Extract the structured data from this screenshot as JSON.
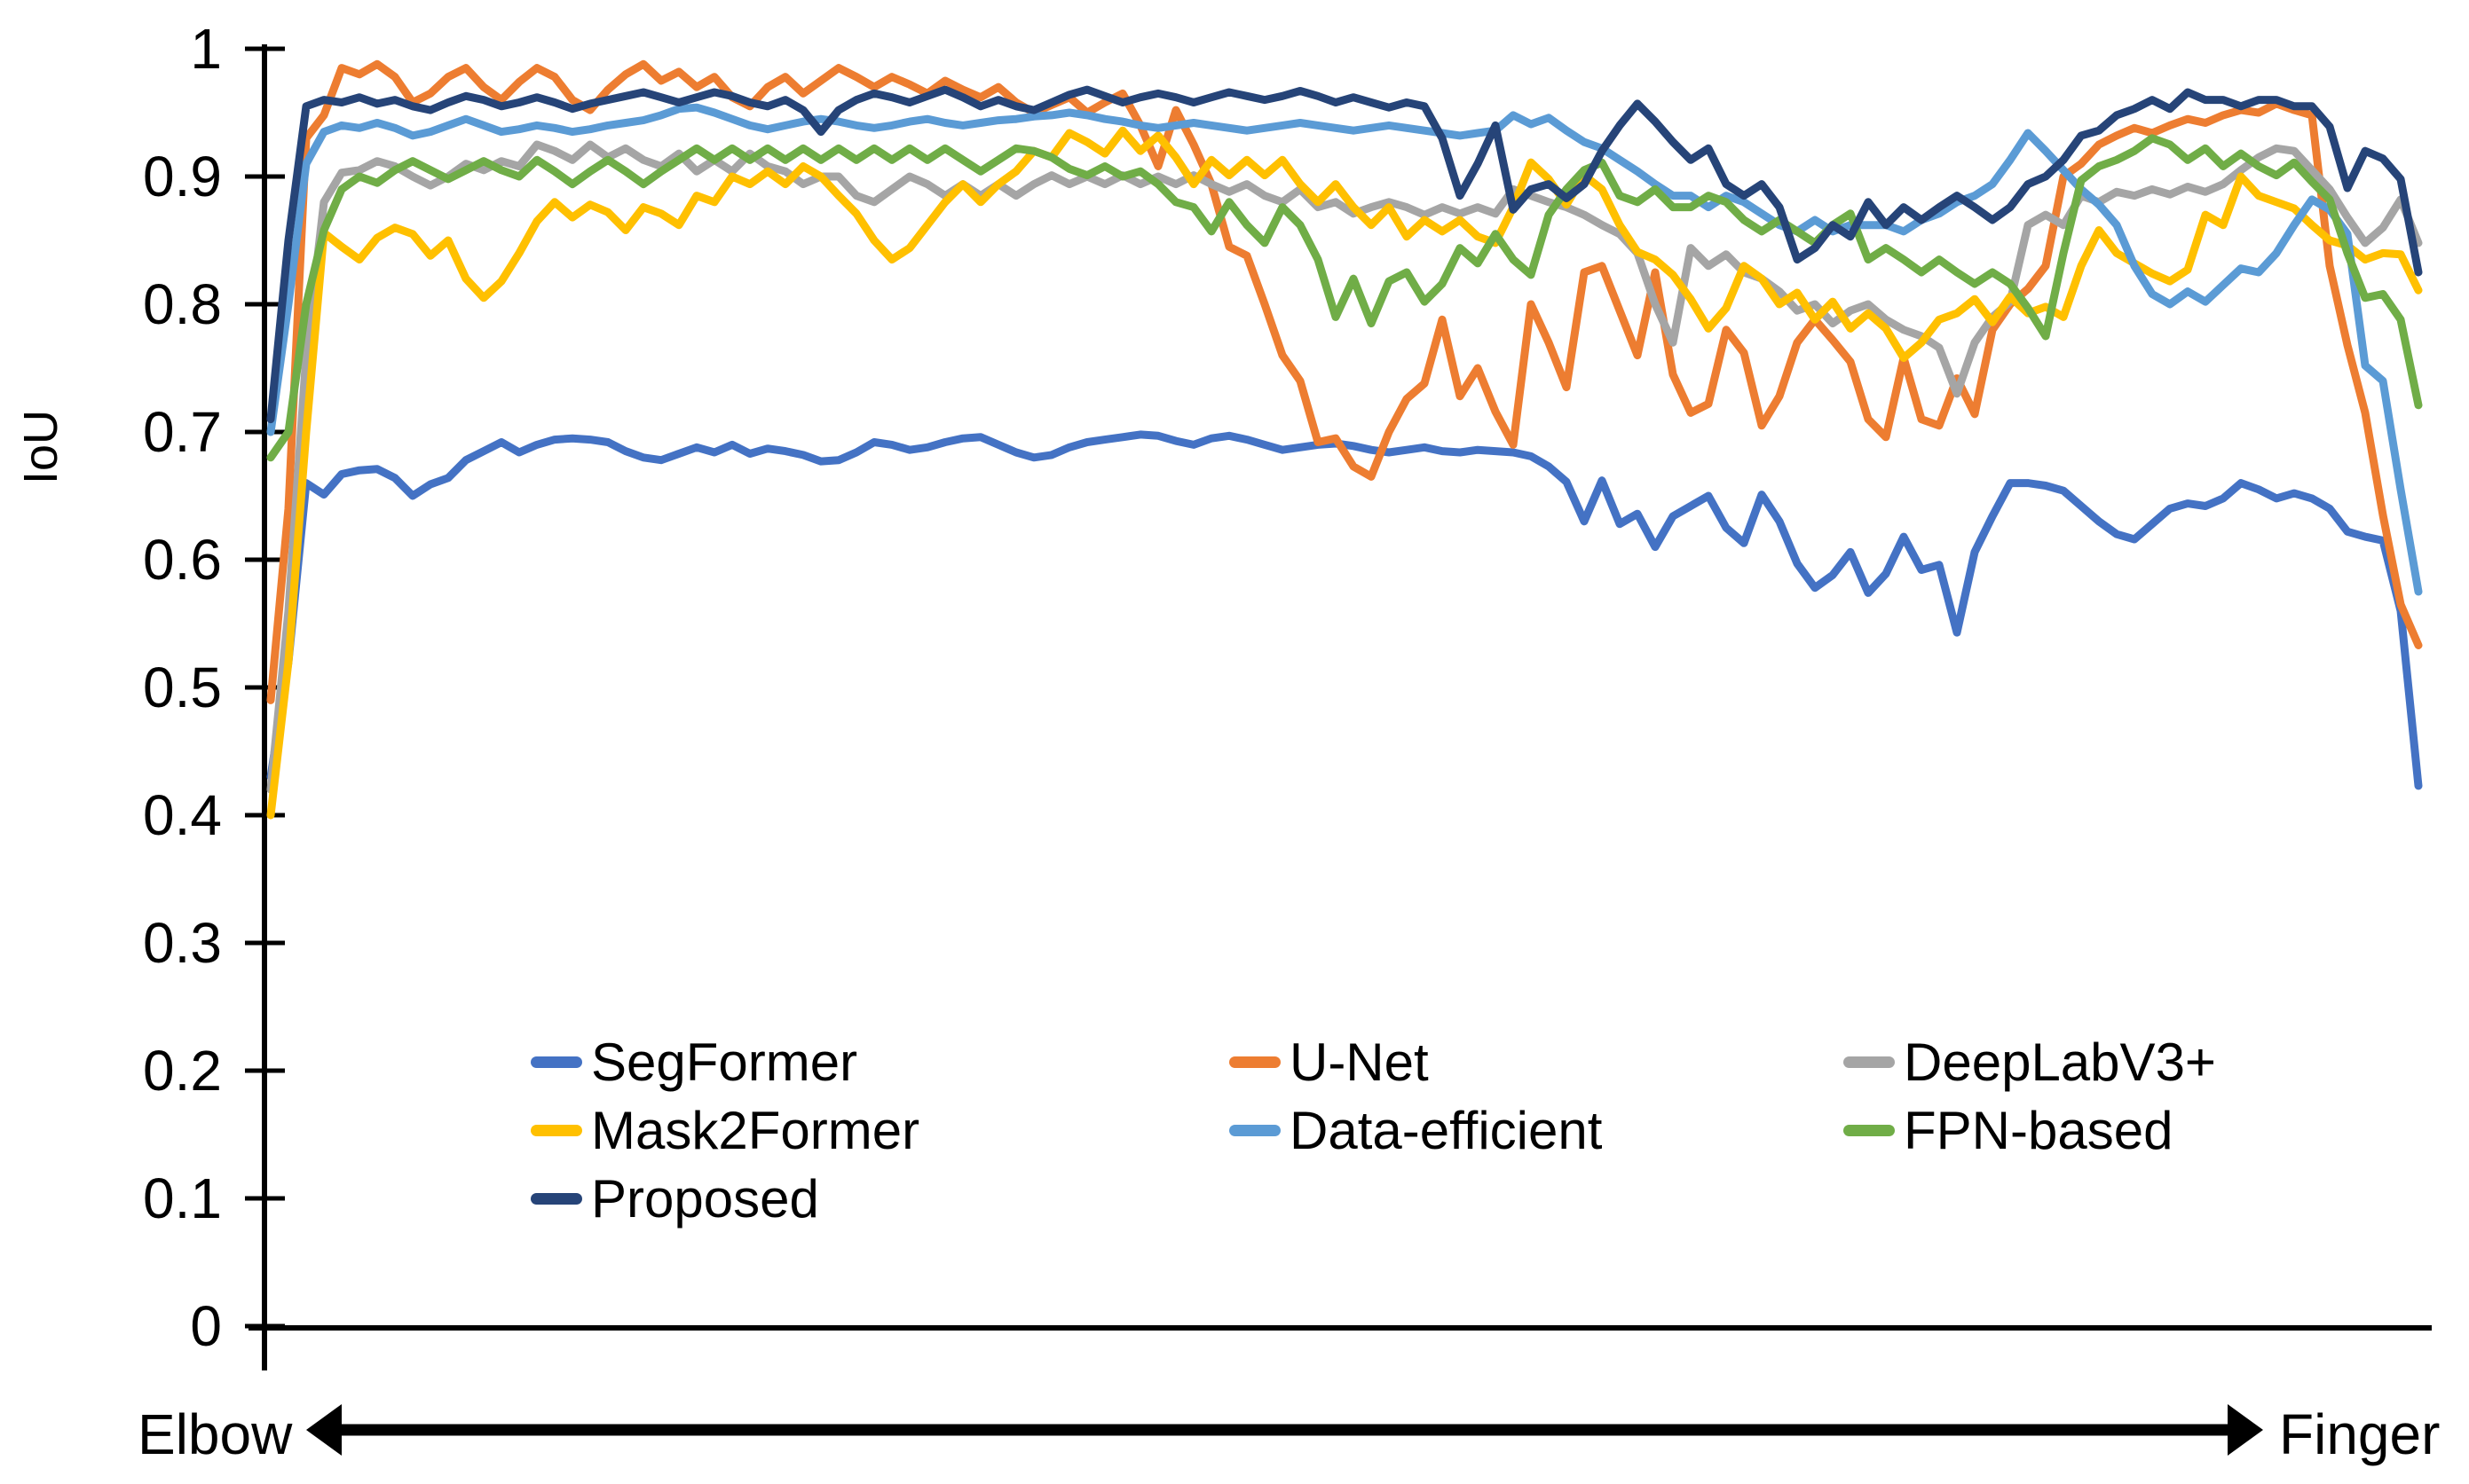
{
  "figure": {
    "ylabel": "IoU",
    "x_left_label": "Elbow",
    "x_right_label": "Finger"
  },
  "legend": {
    "items": [
      {
        "label": "SegFormer",
        "color": "#4472C4"
      },
      {
        "label": "U-Net",
        "color": "#ED7D31"
      },
      {
        "label": "DeepLabV3+",
        "color": "#A5A5A5"
      },
      {
        "label": "Mask2Former",
        "color": "#FFC000"
      },
      {
        "label": "Data-efficient",
        "color": "#5B9BD5"
      },
      {
        "label": "FPN-based",
        "color": "#70AD47"
      },
      {
        "label": "Proposed",
        "color": "#264478"
      }
    ]
  },
  "chart_data": {
    "type": "line",
    "title": "",
    "ylabel": "IoU",
    "x_axis": {
      "left_label": "Elbow",
      "right_label": "Finger",
      "style": "double-headed arrow, no numeric ticks"
    },
    "ylim": [
      0,
      1
    ],
    "y_ticks": [
      "0",
      "0.1",
      "0.2",
      "0.3",
      "0.4",
      "0.5",
      "0.6",
      "0.7",
      "0.8",
      "0.9",
      "1"
    ],
    "grid": false,
    "legend_position": "inside lower center, 3 columns",
    "series": [
      {
        "name": "SegFormer",
        "color": "#4472C4",
        "values": [
          0.43,
          0.52,
          0.66,
          0.651,
          0.667,
          0.67,
          0.671,
          0.664,
          0.65,
          0.659,
          0.664,
          0.678,
          0.685,
          0.692,
          0.684,
          0.69,
          0.694,
          0.695,
          0.694,
          0.692,
          0.685,
          0.68,
          0.678,
          0.683,
          0.688,
          0.684,
          0.69,
          0.683,
          0.687,
          0.685,
          0.682,
          0.677,
          0.678,
          0.684,
          0.692,
          0.69,
          0.686,
          0.688,
          0.692,
          0.695,
          0.696,
          0.69,
          0.684,
          0.68,
          0.682,
          0.688,
          0.692,
          0.694,
          0.696,
          0.698,
          0.697,
          0.693,
          0.69,
          0.695,
          0.697,
          0.694,
          0.69,
          0.686,
          0.688,
          0.69,
          0.691,
          0.689,
          0.686,
          0.684,
          0.686,
          0.688,
          0.685,
          0.684,
          0.686,
          0.685,
          0.684,
          0.681,
          0.673,
          0.661,
          0.63,
          0.662,
          0.628,
          0.636,
          0.61,
          0.634,
          0.642,
          0.65,
          0.625,
          0.613,
          0.651,
          0.63,
          0.597,
          0.578,
          0.588,
          0.606,
          0.574,
          0.589,
          0.618,
          0.592,
          0.596,
          0.543,
          0.606,
          0.634,
          0.66,
          0.66,
          0.658,
          0.654,
          0.642,
          0.63,
          0.62,
          0.616,
          0.628,
          0.64,
          0.644,
          0.642,
          0.648,
          0.66,
          0.655,
          0.648,
          0.652,
          0.648,
          0.64,
          0.622,
          0.618,
          0.615,
          0.56,
          0.423
        ]
      },
      {
        "name": "U-Net",
        "color": "#ED7D31",
        "values": [
          0.49,
          0.64,
          0.93,
          0.948,
          0.985,
          0.98,
          0.988,
          0.978,
          0.958,
          0.965,
          0.978,
          0.985,
          0.97,
          0.96,
          0.974,
          0.985,
          0.978,
          0.96,
          0.952,
          0.968,
          0.98,
          0.988,
          0.975,
          0.982,
          0.97,
          0.978,
          0.962,
          0.955,
          0.97,
          0.978,
          0.965,
          0.975,
          0.985,
          0.978,
          0.97,
          0.978,
          0.972,
          0.965,
          0.975,
          0.968,
          0.962,
          0.97,
          0.958,
          0.95,
          0.956,
          0.962,
          0.95,
          0.958,
          0.965,
          0.94,
          0.908,
          0.952,
          0.925,
          0.894,
          0.845,
          0.838,
          0.8,
          0.76,
          0.74,
          0.692,
          0.695,
          0.673,
          0.665,
          0.7,
          0.726,
          0.738,
          0.788,
          0.728,
          0.75,
          0.716,
          0.69,
          0.8,
          0.77,
          0.735,
          0.825,
          0.83,
          0.795,
          0.76,
          0.825,
          0.745,
          0.715,
          0.722,
          0.78,
          0.762,
          0.705,
          0.728,
          0.77,
          0.788,
          0.772,
          0.755,
          0.71,
          0.696,
          0.758,
          0.71,
          0.705,
          0.742,
          0.714,
          0.78,
          0.8,
          0.812,
          0.83,
          0.9,
          0.91,
          0.925,
          0.932,
          0.938,
          0.934,
          0.94,
          0.945,
          0.942,
          0.948,
          0.952,
          0.95,
          0.957,
          0.952,
          0.948,
          0.83,
          0.768,
          0.715,
          0.635,
          0.565,
          0.533
        ]
      },
      {
        "name": "DeepLabV3+",
        "color": "#A5A5A5",
        "values": [
          0.42,
          0.56,
          0.76,
          0.88,
          0.903,
          0.905,
          0.912,
          0.908,
          0.9,
          0.893,
          0.9,
          0.91,
          0.905,
          0.912,
          0.908,
          0.925,
          0.92,
          0.913,
          0.925,
          0.915,
          0.922,
          0.913,
          0.908,
          0.918,
          0.904,
          0.913,
          0.904,
          0.918,
          0.908,
          0.904,
          0.894,
          0.9,
          0.9,
          0.885,
          0.88,
          0.89,
          0.9,
          0.894,
          0.885,
          0.894,
          0.885,
          0.894,
          0.885,
          0.894,
          0.901,
          0.894,
          0.9,
          0.894,
          0.901,
          0.894,
          0.9,
          0.894,
          0.901,
          0.894,
          0.888,
          0.894,
          0.885,
          0.88,
          0.89,
          0.876,
          0.88,
          0.871,
          0.876,
          0.88,
          0.876,
          0.87,
          0.876,
          0.871,
          0.876,
          0.871,
          0.89,
          0.885,
          0.88,
          0.876,
          0.87,
          0.862,
          0.855,
          0.84,
          0.8,
          0.77,
          0.844,
          0.83,
          0.839,
          0.825,
          0.82,
          0.81,
          0.795,
          0.8,
          0.785,
          0.795,
          0.8,
          0.788,
          0.78,
          0.775,
          0.766,
          0.73,
          0.77,
          0.79,
          0.802,
          0.862,
          0.87,
          0.862,
          0.885,
          0.88,
          0.888,
          0.885,
          0.89,
          0.886,
          0.892,
          0.888,
          0.894,
          0.905,
          0.915,
          0.922,
          0.92,
          0.905,
          0.89,
          0.868,
          0.848,
          0.86,
          0.882,
          0.848
        ]
      },
      {
        "name": "Mask2Former",
        "color": "#FFC000",
        "values": [
          0.4,
          0.52,
          0.7,
          0.856,
          0.845,
          0.835,
          0.852,
          0.86,
          0.855,
          0.838,
          0.85,
          0.82,
          0.805,
          0.818,
          0.84,
          0.865,
          0.88,
          0.868,
          0.878,
          0.872,
          0.858,
          0.876,
          0.871,
          0.862,
          0.885,
          0.88,
          0.9,
          0.894,
          0.904,
          0.894,
          0.908,
          0.9,
          0.885,
          0.871,
          0.85,
          0.835,
          0.844,
          0.862,
          0.88,
          0.894,
          0.88,
          0.894,
          0.904,
          0.92,
          0.915,
          0.934,
          0.927,
          0.918,
          0.936,
          0.92,
          0.932,
          0.915,
          0.894,
          0.913,
          0.901,
          0.913,
          0.901,
          0.913,
          0.894,
          0.88,
          0.894,
          0.876,
          0.862,
          0.876,
          0.853,
          0.866,
          0.857,
          0.866,
          0.853,
          0.848,
          0.876,
          0.911,
          0.898,
          0.878,
          0.901,
          0.89,
          0.862,
          0.841,
          0.835,
          0.823,
          0.804,
          0.781,
          0.797,
          0.83,
          0.82,
          0.8,
          0.809,
          0.788,
          0.802,
          0.781,
          0.793,
          0.781,
          0.758,
          0.77,
          0.788,
          0.793,
          0.804,
          0.786,
          0.806,
          0.793,
          0.798,
          0.79,
          0.83,
          0.858,
          0.84,
          0.832,
          0.824,
          0.818,
          0.827,
          0.87,
          0.862,
          0.9,
          0.885,
          0.88,
          0.875,
          0.862,
          0.85,
          0.846,
          0.835,
          0.84,
          0.839,
          0.811
        ]
      },
      {
        "name": "Data-efficient",
        "color": "#5B9BD5",
        "values": [
          0.7,
          0.8,
          0.91,
          0.935,
          0.94,
          0.938,
          0.942,
          0.938,
          0.932,
          0.935,
          0.94,
          0.945,
          0.94,
          0.935,
          0.937,
          0.94,
          0.938,
          0.935,
          0.937,
          0.94,
          0.942,
          0.944,
          0.948,
          0.953,
          0.954,
          0.95,
          0.945,
          0.94,
          0.937,
          0.94,
          0.943,
          0.945,
          0.943,
          0.94,
          0.938,
          0.94,
          0.943,
          0.945,
          0.942,
          0.94,
          0.942,
          0.944,
          0.945,
          0.947,
          0.948,
          0.95,
          0.948,
          0.945,
          0.943,
          0.94,
          0.938,
          0.94,
          0.942,
          0.94,
          0.938,
          0.936,
          0.938,
          0.94,
          0.942,
          0.94,
          0.938,
          0.936,
          0.938,
          0.94,
          0.938,
          0.936,
          0.934,
          0.932,
          0.934,
          0.936,
          0.948,
          0.941,
          0.946,
          0.936,
          0.927,
          0.922,
          0.913,
          0.904,
          0.894,
          0.885,
          0.885,
          0.876,
          0.885,
          0.88,
          0.871,
          0.862,
          0.857,
          0.866,
          0.857,
          0.862,
          0.862,
          0.862,
          0.857,
          0.866,
          0.871,
          0.88,
          0.885,
          0.894,
          0.913,
          0.934,
          0.92,
          0.905,
          0.89,
          0.878,
          0.862,
          0.83,
          0.808,
          0.8,
          0.81,
          0.802,
          0.815,
          0.828,
          0.825,
          0.84,
          0.862,
          0.882,
          0.874,
          0.855,
          0.752,
          0.74,
          0.655,
          0.575
        ]
      },
      {
        "name": "FPN-based",
        "color": "#70AD47",
        "values": [
          0.68,
          0.7,
          0.8,
          0.858,
          0.89,
          0.9,
          0.895,
          0.905,
          0.912,
          0.905,
          0.898,
          0.905,
          0.912,
          0.905,
          0.9,
          0.913,
          0.904,
          0.894,
          0.904,
          0.913,
          0.904,
          0.894,
          0.904,
          0.913,
          0.922,
          0.913,
          0.922,
          0.913,
          0.922,
          0.913,
          0.922,
          0.913,
          0.922,
          0.913,
          0.922,
          0.913,
          0.922,
          0.913,
          0.922,
          0.913,
          0.904,
          0.913,
          0.922,
          0.92,
          0.915,
          0.906,
          0.901,
          0.908,
          0.9,
          0.904,
          0.894,
          0.88,
          0.876,
          0.857,
          0.88,
          0.862,
          0.848,
          0.876,
          0.862,
          0.835,
          0.79,
          0.82,
          0.785,
          0.818,
          0.825,
          0.802,
          0.816,
          0.844,
          0.832,
          0.855,
          0.835,
          0.823,
          0.87,
          0.89,
          0.905,
          0.911,
          0.885,
          0.88,
          0.89,
          0.876,
          0.876,
          0.885,
          0.88,
          0.866,
          0.857,
          0.866,
          0.857,
          0.848,
          0.862,
          0.871,
          0.835,
          0.844,
          0.835,
          0.825,
          0.835,
          0.825,
          0.816,
          0.825,
          0.816,
          0.797,
          0.775,
          0.84,
          0.897,
          0.908,
          0.913,
          0.92,
          0.93,
          0.925,
          0.913,
          0.922,
          0.908,
          0.918,
          0.908,
          0.901,
          0.911,
          0.896,
          0.882,
          0.84,
          0.805,
          0.808,
          0.788,
          0.721
        ]
      },
      {
        "name": "Proposed",
        "color": "#264478",
        "values": [
          0.71,
          0.85,
          0.955,
          0.96,
          0.958,
          0.962,
          0.957,
          0.96,
          0.955,
          0.952,
          0.958,
          0.963,
          0.96,
          0.955,
          0.958,
          0.962,
          0.958,
          0.953,
          0.957,
          0.96,
          0.963,
          0.966,
          0.962,
          0.958,
          0.962,
          0.966,
          0.963,
          0.958,
          0.955,
          0.96,
          0.952,
          0.935,
          0.952,
          0.96,
          0.965,
          0.962,
          0.958,
          0.963,
          0.968,
          0.962,
          0.955,
          0.96,
          0.955,
          0.952,
          0.958,
          0.964,
          0.968,
          0.963,
          0.958,
          0.962,
          0.965,
          0.962,
          0.958,
          0.962,
          0.966,
          0.963,
          0.96,
          0.963,
          0.967,
          0.963,
          0.958,
          0.962,
          0.958,
          0.954,
          0.958,
          0.955,
          0.93,
          0.885,
          0.91,
          0.94,
          0.874,
          0.89,
          0.894,
          0.883,
          0.894,
          0.92,
          0.94,
          0.957,
          0.943,
          0.927,
          0.913,
          0.922,
          0.894,
          0.885,
          0.894,
          0.876,
          0.835,
          0.844,
          0.862,
          0.853,
          0.88,
          0.862,
          0.876,
          0.866,
          0.876,
          0.885,
          0.876,
          0.866,
          0.876,
          0.894,
          0.9,
          0.913,
          0.932,
          0.936,
          0.948,
          0.953,
          0.96,
          0.953,
          0.966,
          0.96,
          0.96,
          0.955,
          0.96,
          0.96,
          0.955,
          0.955,
          0.939,
          0.891,
          0.92,
          0.914,
          0.898,
          0.825
        ]
      }
    ]
  }
}
